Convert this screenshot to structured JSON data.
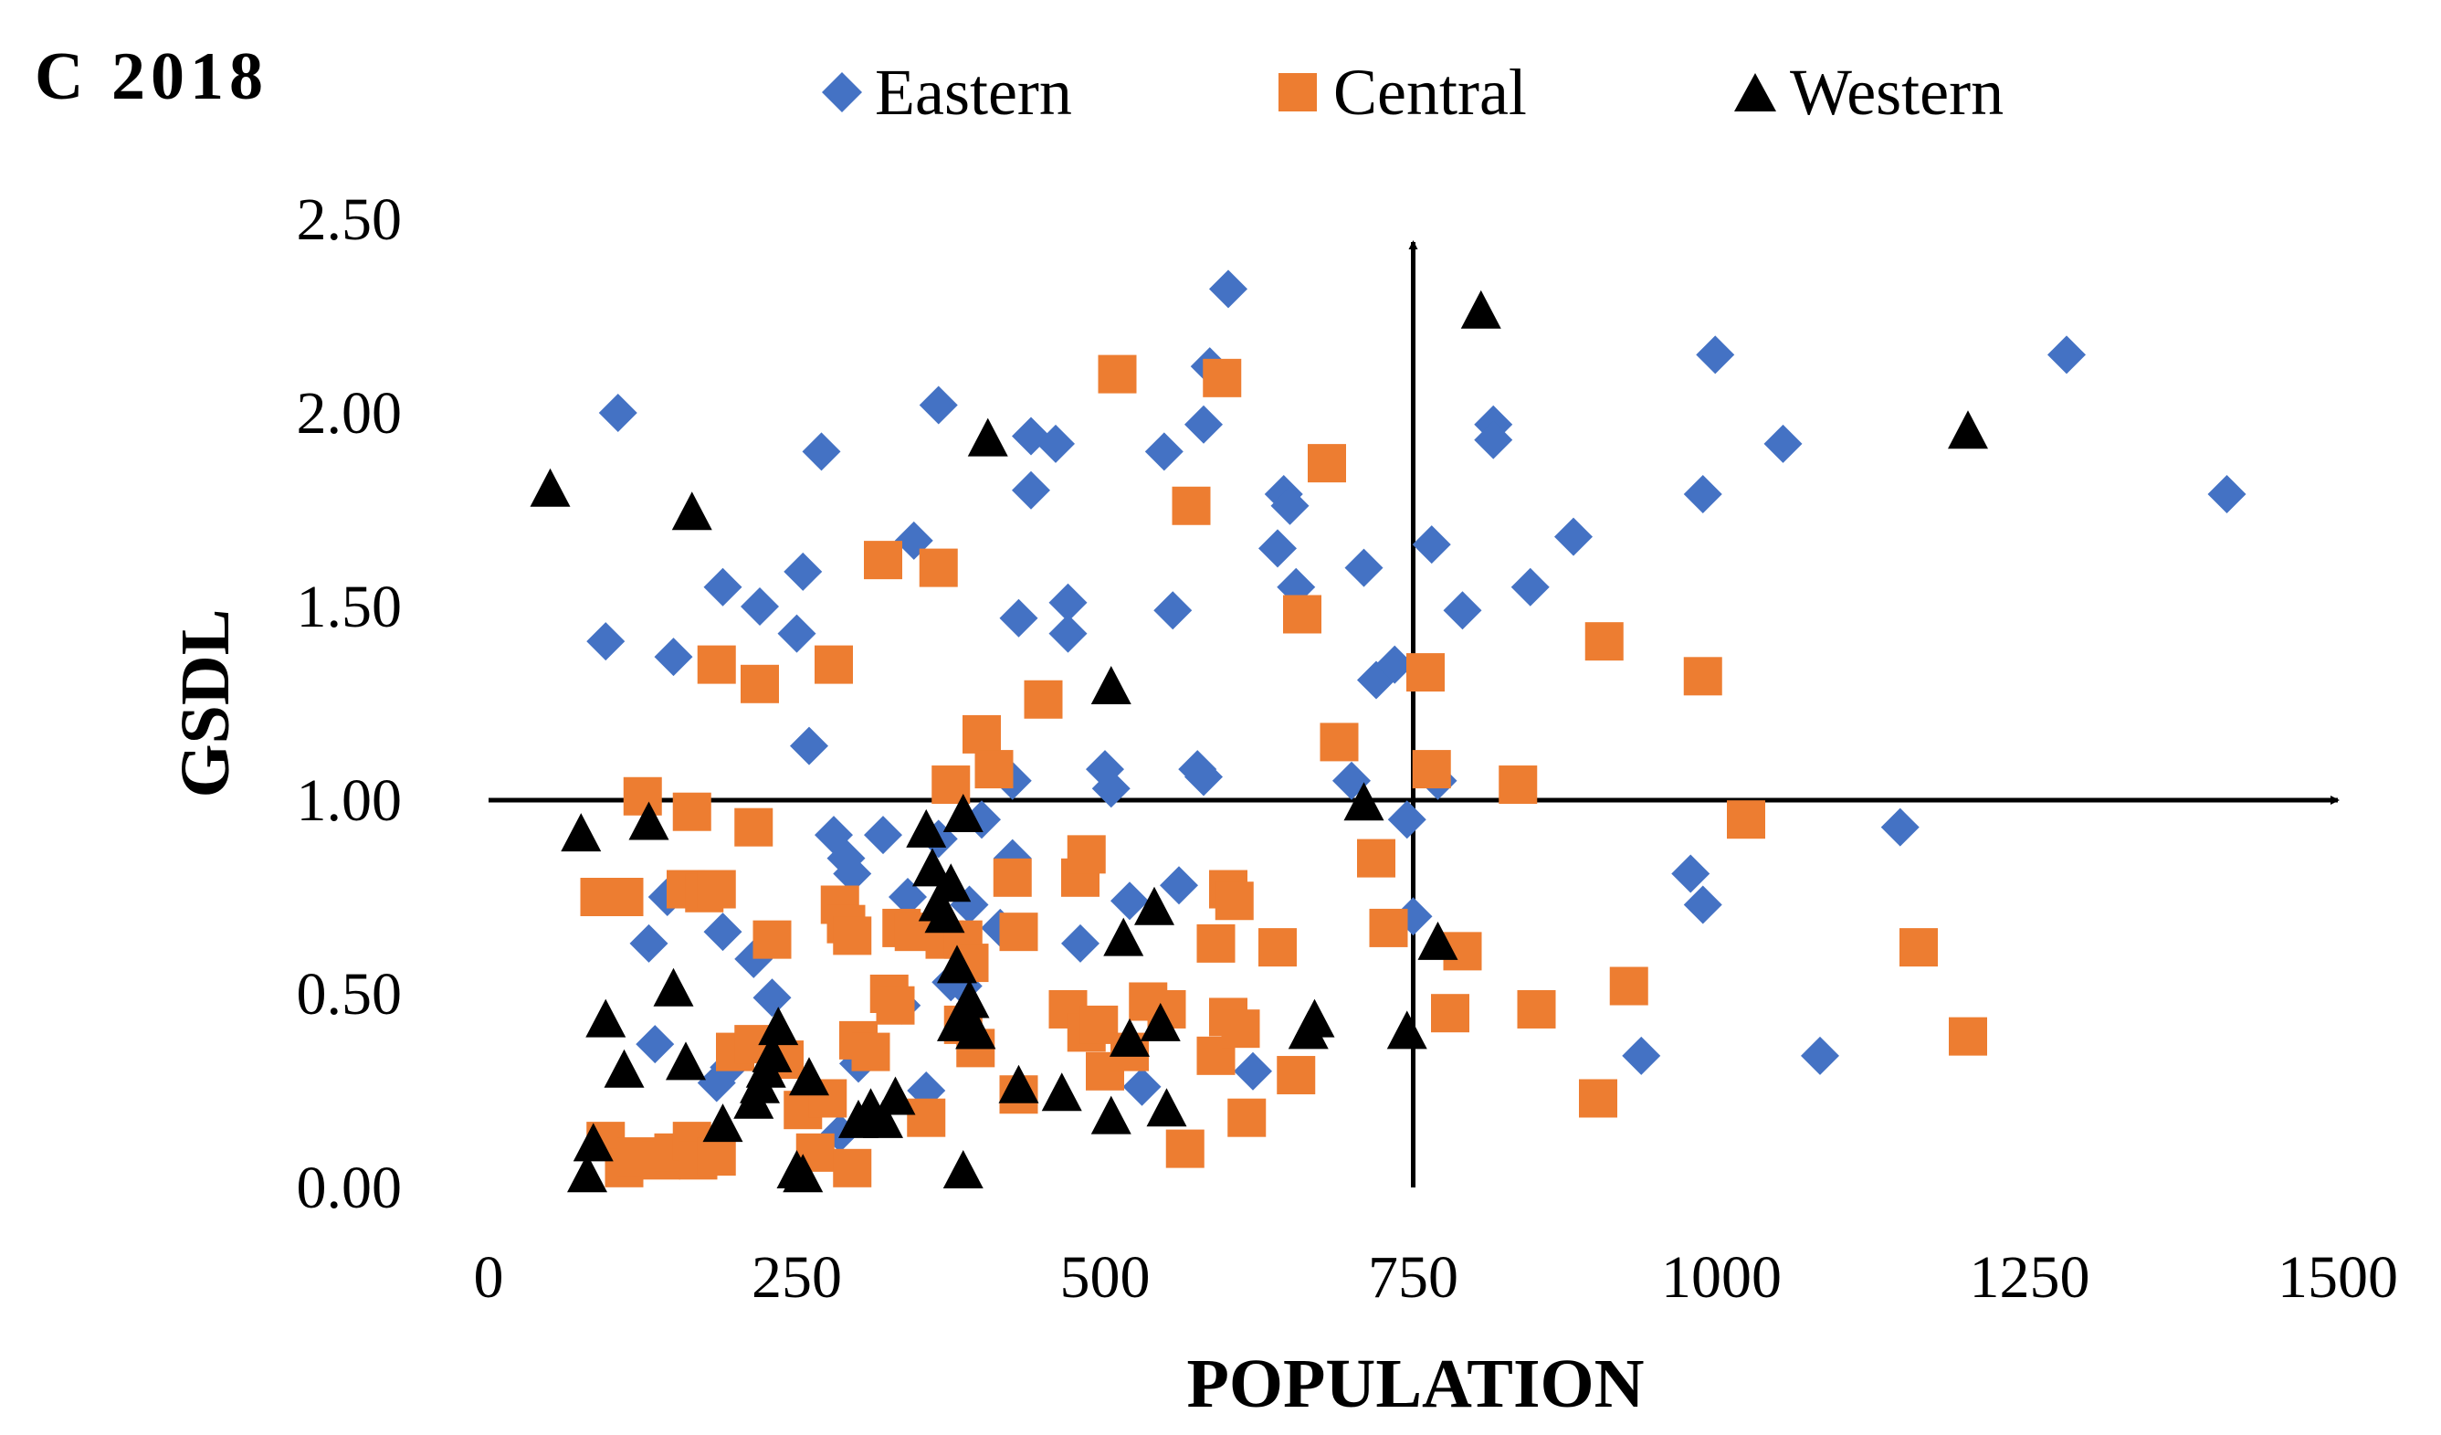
{
  "chart_data": {
    "type": "scatter",
    "title": "C 2018",
    "xlabel": "POPULATION",
    "ylabel": "GSDL",
    "xlim": [
      0,
      1500
    ],
    "ylim": [
      0,
      2.5
    ],
    "x_ticks": [
      "0",
      "250",
      "500",
      "750",
      "1000",
      "1250",
      "1500"
    ],
    "y_ticks": [
      "0.00",
      "0.50",
      "1.00",
      "1.50",
      "2.00",
      "2.50"
    ],
    "reference_lines": {
      "x": 750,
      "y": 1.0
    },
    "legend_position": "top",
    "series": [
      {
        "name": "Eastern",
        "marker": "diamond",
        "color": "#4472C4",
        "points": [
          [
            105,
            2.0
          ],
          [
            95,
            1.41
          ],
          [
            150,
            1.37
          ],
          [
            190,
            1.55
          ],
          [
            220,
            1.5
          ],
          [
            250,
            1.43
          ],
          [
            255,
            1.59
          ],
          [
            260,
            1.14
          ],
          [
            270,
            1.9
          ],
          [
            345,
            1.67
          ],
          [
            365,
            2.02
          ],
          [
            440,
            1.94
          ],
          [
            460,
            1.92
          ],
          [
            440,
            1.8
          ],
          [
            430,
            1.47
          ],
          [
            470,
            1.51
          ],
          [
            470,
            1.43
          ],
          [
            548,
            1.9
          ],
          [
            555,
            1.49
          ],
          [
            585,
            2.12
          ],
          [
            580,
            1.97
          ],
          [
            600,
            2.32
          ],
          [
            640,
            1.65
          ],
          [
            645,
            1.79
          ],
          [
            650,
            1.76
          ],
          [
            655,
            1.55
          ],
          [
            710,
            1.6
          ],
          [
            720,
            1.31
          ],
          [
            735,
            1.35
          ],
          [
            745,
            0.95
          ],
          [
            750,
            0.7
          ],
          [
            765,
            1.66
          ],
          [
            770,
            1.05
          ],
          [
            790,
            1.49
          ],
          [
            815,
            1.97
          ],
          [
            815,
            1.93
          ],
          [
            845,
            1.55
          ],
          [
            880,
            1.68
          ],
          [
            995,
            2.15
          ],
          [
            985,
            1.79
          ],
          [
            1050,
            1.92
          ],
          [
            1280,
            2.15
          ],
          [
            1410,
            1.79
          ],
          [
            1145,
            0.93
          ],
          [
            975,
            0.81
          ],
          [
            985,
            0.73
          ],
          [
            935,
            0.34
          ],
          [
            1080,
            0.34
          ],
          [
            130,
            0.63
          ],
          [
            135,
            0.37
          ],
          [
            145,
            0.75
          ],
          [
            185,
            0.27
          ],
          [
            190,
            0.66
          ],
          [
            195,
            0.31
          ],
          [
            215,
            0.59
          ],
          [
            230,
            0.49
          ],
          [
            280,
            0.91
          ],
          [
            285,
            0.14
          ],
          [
            290,
            0.85
          ],
          [
            295,
            0.81
          ],
          [
            300,
            0.32
          ],
          [
            320,
            0.91
          ],
          [
            335,
            0.47
          ],
          [
            340,
            0.75
          ],
          [
            355,
            0.25
          ],
          [
            365,
            0.9
          ],
          [
            375,
            0.53
          ],
          [
            385,
            0.52
          ],
          [
            390,
            0.73
          ],
          [
            400,
            0.95
          ],
          [
            415,
            0.67
          ],
          [
            425,
            1.05
          ],
          [
            425,
            0.85
          ],
          [
            480,
            0.63
          ],
          [
            500,
            1.08
          ],
          [
            505,
            1.03
          ],
          [
            520,
            0.74
          ],
          [
            530,
            0.26
          ],
          [
            560,
            0.78
          ],
          [
            575,
            1.08
          ],
          [
            580,
            1.06
          ],
          [
            620,
            0.3
          ],
          [
            700,
            1.05
          ]
        ]
      },
      {
        "name": "Central",
        "marker": "square",
        "color": "#ED7D31",
        "points": [
          [
            510,
            2.1
          ],
          [
            595,
            2.09
          ],
          [
            570,
            1.76
          ],
          [
            320,
            1.62
          ],
          [
            365,
            1.6
          ],
          [
            680,
            1.87
          ],
          [
            660,
            1.48
          ],
          [
            185,
            1.35
          ],
          [
            220,
            1.3
          ],
          [
            280,
            1.35
          ],
          [
            450,
            1.26
          ],
          [
            400,
            1.17
          ],
          [
            410,
            1.08
          ],
          [
            375,
            1.04
          ],
          [
            690,
            1.15
          ],
          [
            760,
            1.33
          ],
          [
            765,
            1.08
          ],
          [
            835,
            1.04
          ],
          [
            905,
            1.41
          ],
          [
            985,
            1.32
          ],
          [
            1020,
            0.95
          ],
          [
            125,
            1.01
          ],
          [
            165,
            0.97
          ],
          [
            215,
            0.93
          ],
          [
            90,
            0.75
          ],
          [
            110,
            0.75
          ],
          [
            160,
            0.77
          ],
          [
            175,
            0.76
          ],
          [
            185,
            0.77
          ],
          [
            230,
            0.64
          ],
          [
            285,
            0.73
          ],
          [
            290,
            0.68
          ],
          [
            295,
            0.65
          ],
          [
            335,
            0.67
          ],
          [
            345,
            0.66
          ],
          [
            370,
            0.64
          ],
          [
            385,
            0.64
          ],
          [
            390,
            0.58
          ],
          [
            425,
            0.8
          ],
          [
            430,
            0.66
          ],
          [
            480,
            0.8
          ],
          [
            485,
            0.86
          ],
          [
            600,
            0.77
          ],
          [
            605,
            0.74
          ],
          [
            590,
            0.63
          ],
          [
            640,
            0.62
          ],
          [
            720,
            0.85
          ],
          [
            730,
            0.67
          ],
          [
            780,
            0.45
          ],
          [
            790,
            0.61
          ],
          [
            850,
            0.46
          ],
          [
            925,
            0.52
          ],
          [
            900,
            0.23
          ],
          [
            1160,
            0.62
          ],
          [
            1200,
            0.39
          ],
          [
            95,
            0.12
          ],
          [
            110,
            0.05
          ],
          [
            120,
            0.08
          ],
          [
            140,
            0.07
          ],
          [
            150,
            0.09
          ],
          [
            165,
            0.12
          ],
          [
            170,
            0.07
          ],
          [
            185,
            0.08
          ],
          [
            200,
            0.35
          ],
          [
            215,
            0.37
          ],
          [
            240,
            0.33
          ],
          [
            255,
            0.2
          ],
          [
            265,
            0.09
          ],
          [
            275,
            0.23
          ],
          [
            295,
            0.05
          ],
          [
            300,
            0.38
          ],
          [
            310,
            0.35
          ],
          [
            325,
            0.5
          ],
          [
            330,
            0.47
          ],
          [
            355,
            0.18
          ],
          [
            385,
            0.42
          ],
          [
            395,
            0.36
          ],
          [
            430,
            0.24
          ],
          [
            470,
            0.46
          ],
          [
            485,
            0.4
          ],
          [
            495,
            0.42
          ],
          [
            500,
            0.3
          ],
          [
            520,
            0.35
          ],
          [
            535,
            0.48
          ],
          [
            550,
            0.46
          ],
          [
            565,
            0.1
          ],
          [
            590,
            0.34
          ],
          [
            600,
            0.44
          ],
          [
            610,
            0.41
          ],
          [
            615,
            0.18
          ],
          [
            655,
            0.29
          ]
        ]
      },
      {
        "name": "Western",
        "marker": "triangle",
        "color": "#000000",
        "points": [
          [
            50,
            1.8
          ],
          [
            165,
            1.74
          ],
          [
            405,
            1.93
          ],
          [
            505,
            1.29
          ],
          [
            805,
            2.26
          ],
          [
            1200,
            1.95
          ],
          [
            75,
            0.91
          ],
          [
            130,
            0.94
          ],
          [
            355,
            0.92
          ],
          [
            385,
            0.96
          ],
          [
            710,
            0.99
          ],
          [
            360,
            0.82
          ],
          [
            365,
            0.73
          ],
          [
            370,
            0.7
          ],
          [
            375,
            0.78
          ],
          [
            540,
            0.72
          ],
          [
            515,
            0.64
          ],
          [
            770,
            0.63
          ],
          [
            150,
            0.51
          ],
          [
            95,
            0.43
          ],
          [
            110,
            0.3
          ],
          [
            160,
            0.32
          ],
          [
            190,
            0.16
          ],
          [
            215,
            0.22
          ],
          [
            220,
            0.26
          ],
          [
            225,
            0.3
          ],
          [
            230,
            0.34
          ],
          [
            235,
            0.41
          ],
          [
            250,
            0.04
          ],
          [
            255,
            0.03
          ],
          [
            260,
            0.28
          ],
          [
            300,
            0.17
          ],
          [
            310,
            0.2
          ],
          [
            320,
            0.17
          ],
          [
            330,
            0.23
          ],
          [
            380,
            0.42
          ],
          [
            385,
            0.44
          ],
          [
            390,
            0.48
          ],
          [
            395,
            0.4
          ],
          [
            380,
            0.57
          ],
          [
            395,
            0.4
          ],
          [
            430,
            0.26
          ],
          [
            465,
            0.24
          ],
          [
            505,
            0.18
          ],
          [
            520,
            0.38
          ],
          [
            545,
            0.42
          ],
          [
            550,
            0.2
          ],
          [
            665,
            0.4
          ],
          [
            670,
            0.43
          ],
          [
            745,
            0.4
          ],
          [
            85,
            0.11
          ],
          [
            80,
            0.03
          ],
          [
            385,
            0.04
          ]
        ]
      }
    ]
  }
}
